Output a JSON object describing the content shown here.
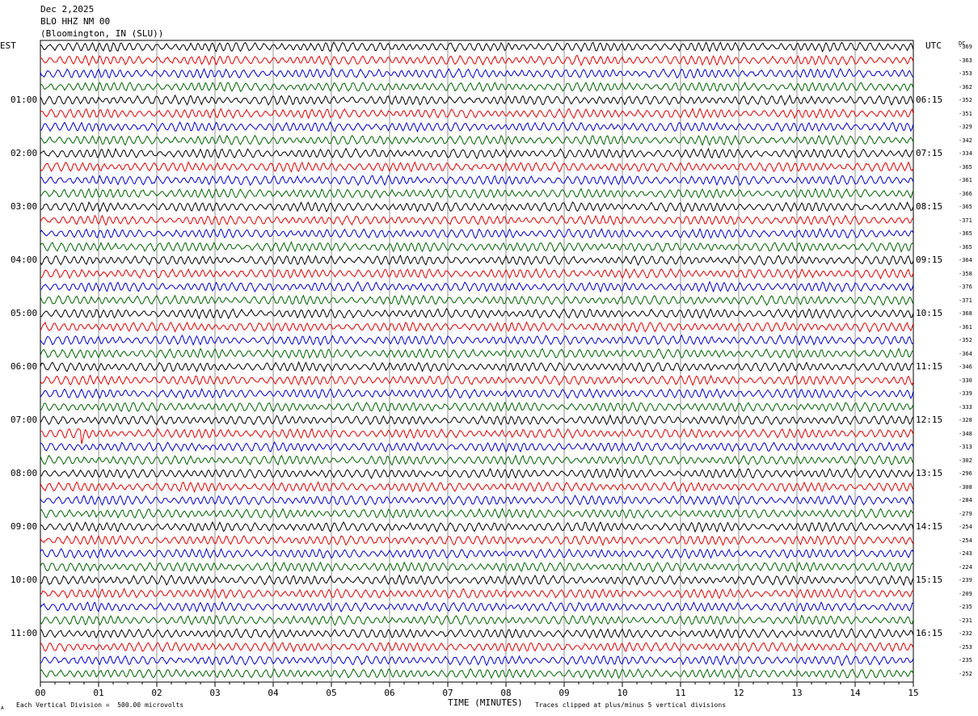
{
  "header": {
    "date": "Dec 2,2025",
    "station": "BLO HHZ NM 00",
    "location": "(Bloomington, IN (SLU))"
  },
  "left_tz": "EST",
  "right_tz": "UTC",
  "dc_header": "DC",
  "footer": {
    "corner_mark": "A",
    "scale_note": "Each Vertical Division =  500.00 microvolts",
    "xlabel": "TIME (MINUTES)",
    "clip_note": "Traces clipped at plus/minus 5 vertical divisions"
  },
  "chart_data": {
    "type": "line",
    "description_type": "helicorder",
    "x_range_minutes": [
      0,
      15
    ],
    "x_ticks": [
      "00",
      "01",
      "02",
      "03",
      "04",
      "05",
      "06",
      "07",
      "08",
      "09",
      "10",
      "11",
      "12",
      "13",
      "14",
      "15"
    ],
    "grid": true,
    "trace_colors": [
      "#000000",
      "#dd0000",
      "#0000cc",
      "#006400"
    ],
    "left_hour_labels": [
      "01:00",
      "02:00",
      "03:00",
      "04:00",
      "05:00",
      "06:00",
      "07:00",
      "08:00",
      "09:00",
      "10:00",
      "11:00"
    ],
    "right_hour_labels": [
      "06:15",
      "07:15",
      "08:15",
      "09:15",
      "10:15",
      "11:15",
      "12:15",
      "13:15",
      "14:15",
      "15:15",
      "16:15"
    ],
    "dc_offsets": [
      "-369",
      "-363",
      "-353",
      "-362",
      "-352",
      "-351",
      "-329",
      "-342",
      "-334",
      "-365",
      "-361",
      "-366",
      "-365",
      "-371",
      "-365",
      "-365",
      "-364",
      "-358",
      "-376",
      "-371",
      "-368",
      "-361",
      "-352",
      "-364",
      "-346",
      "-330",
      "-339",
      "-333",
      "-328",
      "-348",
      "-313",
      "-302",
      "-296",
      "-308",
      "-284",
      "-279",
      "-254",
      "-254",
      "-243",
      "-224",
      "-239",
      "-209",
      "-235",
      "-231",
      "-232",
      "-253",
      "-235",
      "-252"
    ],
    "events": [
      {
        "trace_index": 29,
        "x_minute": 0.7,
        "note": "spike"
      }
    ]
  }
}
